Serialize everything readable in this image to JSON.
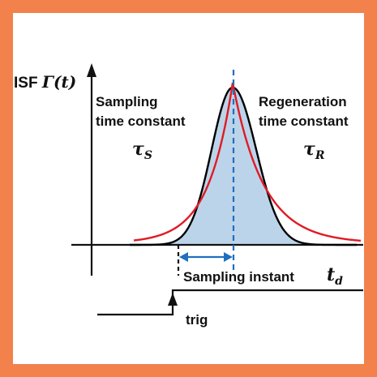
{
  "colors": {
    "border": "#f2814c",
    "axis": "#111111",
    "black_curve": "#000000",
    "red_curve": "#e01b24",
    "fill": "#bcd4ea",
    "marker": "#1f6fc0"
  },
  "labels": {
    "isf_prefix": "ISF ",
    "isf_symbol": "Γ(t)",
    "sampling_line1": "Sampling",
    "sampling_line2": "time constant",
    "tau_s_base": "τ",
    "tau_s_sub": "S",
    "regen_line1": "Regeneration",
    "regen_line2": "time constant",
    "tau_r_base": "τ",
    "tau_r_sub": "R",
    "sampling_instant": "Sampling instant",
    "td_base": "t",
    "td_sub": "d",
    "trig": "trig"
  }
}
